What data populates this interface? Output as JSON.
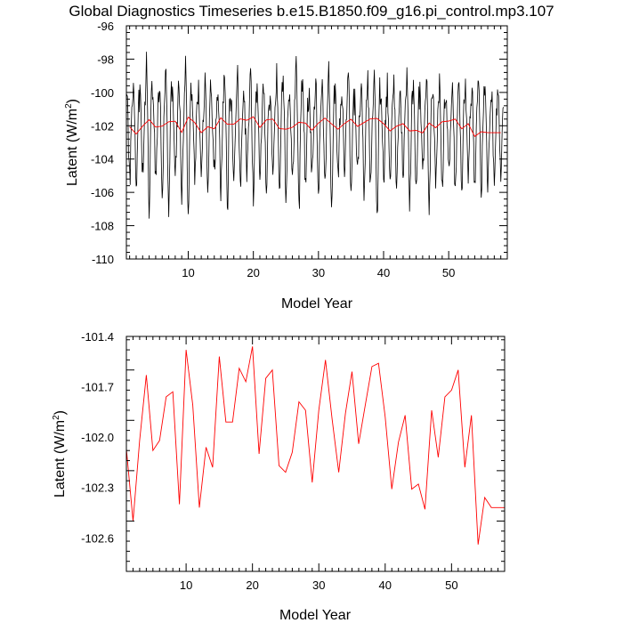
{
  "title": "Global Diagnostics Timeseries b.e15.B1850.f09_g16.pi_control.mp3.107",
  "colors": {
    "monthly": "#000000",
    "annual": "#ff0000",
    "frame": "#000000"
  },
  "chart_data": [
    {
      "type": "line",
      "xlabel": "Model Year",
      "ylabel": "Latent (W/m²)",
      "ylabel_main": "Latent (W/m",
      "ylabel_sup": "2",
      "ylabel_close": ")",
      "xlim": [
        0.5,
        59.0
      ],
      "ylim": [
        -110,
        -96
      ],
      "x_ticks": [
        10,
        20,
        30,
        40,
        50
      ],
      "x_tick_labels": [
        "10",
        "20",
        "30",
        "40",
        "50"
      ],
      "y_ticks": [
        -96,
        -98,
        -100,
        -102,
        -104,
        -106,
        -108,
        -110
      ],
      "y_tick_labels": [
        "-96",
        "-98",
        "-100",
        "-102",
        "-104",
        "-106",
        "-108",
        "-110"
      ],
      "series": [
        {
          "color": "#000000",
          "x_start": 0.5,
          "x_step": 0.08333,
          "pattern": [
            -100.2,
            -99.6,
            -100.5,
            -101.7,
            -103.1,
            -104.6,
            -105.4,
            -104.9,
            -103.6,
            -102.2,
            -101.1,
            -100.5
          ],
          "amplitude": [
            1.0,
            1.3,
            0.8,
            1.5,
            0.9,
            1.1,
            1.4,
            0.7,
            1.2,
            1.6,
            0.9,
            1.0,
            1.3,
            0.8,
            1.1,
            1.5,
            0.9,
            1.2,
            0.8,
            1.4,
            1.0,
            1.1,
            0.7,
            1.3,
            1.2,
            0.9,
            1.5,
            1.0,
            0.8,
            1.2,
            1.1,
            1.4,
            0.9,
            1.0,
            1.3,
            0.8,
            1.2,
            1.1,
            1.5,
            0.9,
            1.0,
            1.2,
            0.8,
            1.3,
            1.1,
            0.9,
            1.4,
            1.0,
            1.2,
            0.8,
            1.1,
            1.3,
            0.9,
            1.0,
            1.2,
            1.1,
            0.9,
            1.0
          ],
          "noise_seed": 107
        },
        {
          "color": "#ff0000",
          "x": [
            1,
            2,
            3,
            4,
            5,
            6,
            7,
            8,
            9,
            10,
            11,
            12,
            13,
            14,
            15,
            16,
            17,
            18,
            19,
            20,
            21,
            22,
            23,
            24,
            25,
            26,
            27,
            28,
            29,
            30,
            31,
            32,
            33,
            34,
            35,
            36,
            37,
            38,
            39,
            40,
            41,
            42,
            43,
            44,
            45,
            46,
            47,
            48,
            49,
            50,
            51,
            52,
            53,
            54,
            55,
            56,
            57,
            58
          ],
          "values": [
            -102.07,
            -102.5,
            -102.02,
            -101.63,
            -102.08,
            -102.02,
            -101.76,
            -101.73,
            -102.4,
            -101.48,
            -101.81,
            -102.42,
            -102.06,
            -102.18,
            -101.52,
            -101.91,
            -101.91,
            -101.59,
            -101.67,
            -101.46,
            -102.1,
            -101.65,
            -101.6,
            -102.17,
            -102.21,
            -102.09,
            -101.79,
            -101.84,
            -102.27,
            -101.84,
            -101.54,
            -101.89,
            -102.21,
            -101.86,
            -101.61,
            -102.04,
            -101.81,
            -101.58,
            -101.56,
            -101.88,
            -102.31,
            -102.03,
            -101.87,
            -102.31,
            -102.28,
            -102.43,
            -101.84,
            -102.12,
            -101.76,
            -101.72,
            -101.6,
            -102.18,
            -101.87,
            -102.64,
            -102.36,
            -102.42,
            -102.42,
            -102.42
          ]
        }
      ]
    },
    {
      "type": "line",
      "xlabel": "Model Year",
      "ylabel": "Latent (W/m²)",
      "ylabel_main": "Latent (W/m",
      "ylabel_sup": "2",
      "ylabel_close": ")",
      "xlim": [
        1,
        58
      ],
      "ylim": [
        -102.8,
        -101.4
      ],
      "x_ticks": [
        10,
        20,
        30,
        40,
        50
      ],
      "x_tick_labels": [
        "10",
        "20",
        "30",
        "40",
        "50"
      ],
      "y_ticks": [
        -101.4,
        -101.7,
        -102.0,
        -102.3,
        -102.6
      ],
      "y_tick_labels": [
        "-101.4",
        "-101.7",
        "-102.0",
        "-102.3",
        "-102.6"
      ],
      "series": [
        {
          "color": "#ff0000",
          "x": [
            1,
            2,
            3,
            4,
            5,
            6,
            7,
            8,
            9,
            10,
            11,
            12,
            13,
            14,
            15,
            16,
            17,
            18,
            19,
            20,
            21,
            22,
            23,
            24,
            25,
            26,
            27,
            28,
            29,
            30,
            31,
            32,
            33,
            34,
            35,
            36,
            37,
            38,
            39,
            40,
            41,
            42,
            43,
            44,
            45,
            46,
            47,
            48,
            49,
            50,
            51,
            52,
            53,
            54,
            55,
            56,
            57,
            58
          ],
          "values": [
            -102.07,
            -102.5,
            -102.02,
            -101.63,
            -102.08,
            -102.02,
            -101.76,
            -101.73,
            -102.4,
            -101.48,
            -101.81,
            -102.42,
            -102.06,
            -102.18,
            -101.52,
            -101.91,
            -101.91,
            -101.59,
            -101.67,
            -101.46,
            -102.1,
            -101.65,
            -101.6,
            -102.17,
            -102.21,
            -102.09,
            -101.79,
            -101.84,
            -102.27,
            -101.84,
            -101.54,
            -101.89,
            -102.21,
            -101.86,
            -101.61,
            -102.04,
            -101.81,
            -101.58,
            -101.56,
            -101.88,
            -102.31,
            -102.03,
            -101.87,
            -102.31,
            -102.28,
            -102.43,
            -101.84,
            -102.12,
            -101.76,
            -101.72,
            -101.6,
            -102.18,
            -101.87,
            -102.64,
            -102.36,
            -102.42,
            -102.42,
            -102.42
          ]
        }
      ]
    }
  ]
}
